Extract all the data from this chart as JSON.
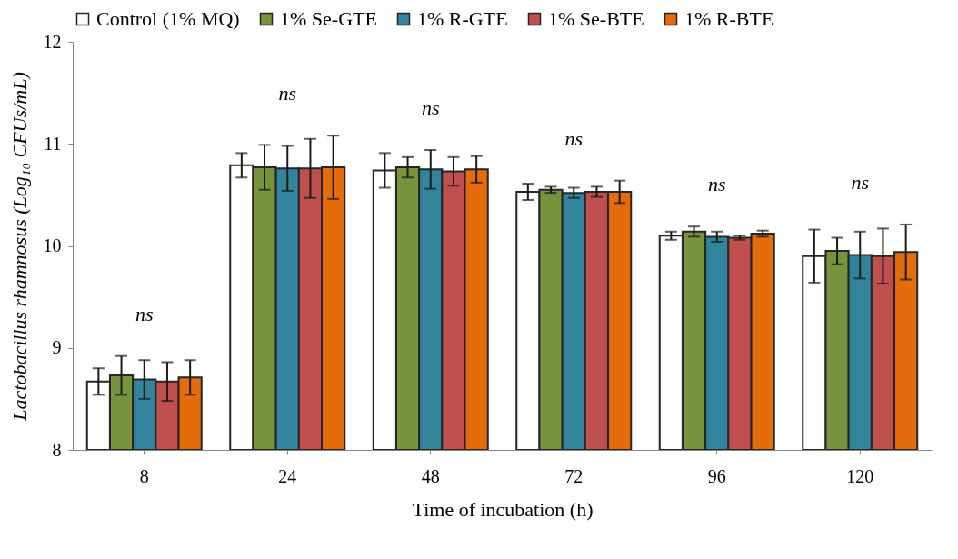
{
  "chart_data": {
    "type": "bar",
    "xlabel": "Time of incubation (h)",
    "ylabel": "Lactobacillus rhamnosus (Log₁₀ CFUs/mL)",
    "categories": [
      "8",
      "24",
      "48",
      "72",
      "96",
      "120"
    ],
    "ylim": [
      8,
      12
    ],
    "yticks": [
      8,
      9,
      10,
      11,
      12
    ],
    "grid": false,
    "legend": "top",
    "series": [
      {
        "name": "Control (1% MQ)",
        "color": "#ffffff",
        "values": [
          8.67,
          10.79,
          10.74,
          10.53,
          10.1,
          9.9
        ],
        "errors": [
          0.13,
          0.12,
          0.17,
          0.08,
          0.04,
          0.26
        ]
      },
      {
        "name": "1% Se-GTE",
        "color": "#77933c",
        "values": [
          8.73,
          10.77,
          10.77,
          10.55,
          10.14,
          9.95
        ],
        "errors": [
          0.19,
          0.22,
          0.1,
          0.03,
          0.05,
          0.13
        ]
      },
      {
        "name": "1% R-GTE",
        "color": "#31849b",
        "values": [
          8.69,
          10.76,
          10.75,
          10.52,
          10.09,
          9.91
        ],
        "errors": [
          0.19,
          0.22,
          0.19,
          0.05,
          0.05,
          0.23
        ]
      },
      {
        "name": "1% Se-BTE",
        "color": "#c0504d",
        "values": [
          8.67,
          10.76,
          10.73,
          10.53,
          10.08,
          9.9
        ],
        "errors": [
          0.19,
          0.29,
          0.14,
          0.05,
          0.02,
          0.27
        ]
      },
      {
        "name": "1% R-BTE",
        "color": "#e46c0a",
        "values": [
          8.71,
          10.77,
          10.75,
          10.53,
          10.12,
          9.94
        ],
        "errors": [
          0.17,
          0.31,
          0.13,
          0.11,
          0.03,
          0.27
        ]
      }
    ],
    "annotations": [
      "ns",
      "ns",
      "ns",
      "ns",
      "ns",
      "ns"
    ]
  }
}
